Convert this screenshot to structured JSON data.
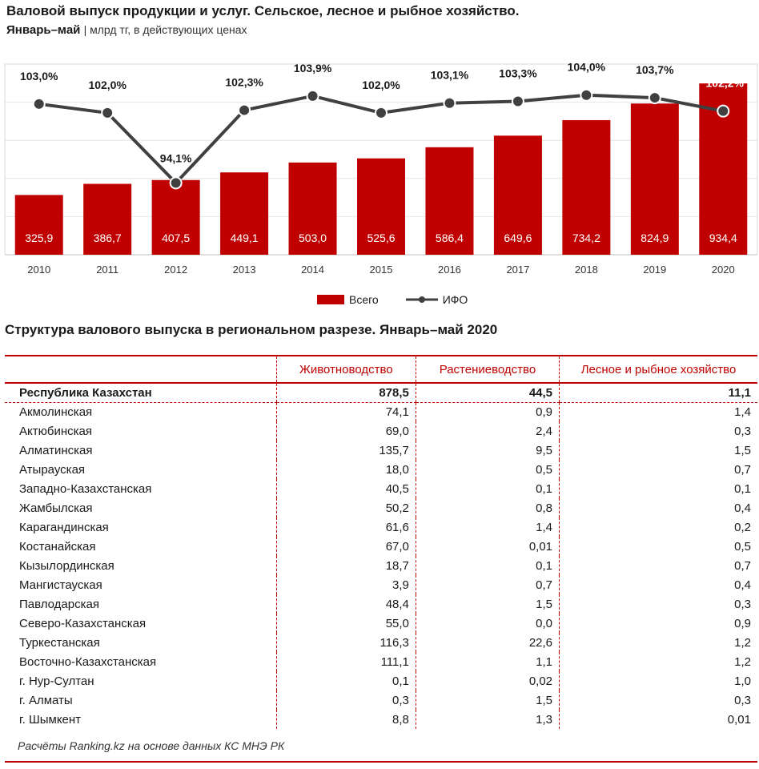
{
  "header": {
    "title": "Валовой выпуск продукции и услуг. Сельское, лесное и рыбное хозяйство.",
    "period": "Январь–май",
    "unit": "| млрд тг, в действующих ценах"
  },
  "chart_data": {
    "type": "bar",
    "categories": [
      "2010",
      "2011",
      "2012",
      "2013",
      "2014",
      "2015",
      "2016",
      "2017",
      "2018",
      "2019",
      "2020"
    ],
    "series": [
      {
        "name": "Всего",
        "type": "bar",
        "color": "#c00000",
        "values": [
          325.9,
          386.7,
          407.5,
          449.1,
          503.0,
          525.6,
          586.4,
          649.6,
          734.2,
          824.9,
          934.4
        ],
        "labels": [
          "325,9",
          "386,7",
          "407,5",
          "449,1",
          "503,0",
          "525,6",
          "586,4",
          "649,6",
          "734,2",
          "824,9",
          "934,4"
        ]
      },
      {
        "name": "ИФО",
        "type": "line",
        "color": "#404040",
        "values": [
          103.0,
          102.0,
          94.1,
          102.3,
          103.9,
          102.0,
          103.1,
          103.3,
          104.0,
          103.7,
          102.2
        ],
        "labels": [
          "103,0%",
          "102,0%",
          "94,1%",
          "102,3%",
          "103,9%",
          "102,0%",
          "103,1%",
          "103,3%",
          "104,0%",
          "103,7%",
          "102,2%"
        ]
      }
    ],
    "ylim_bars": [
      0,
      1000
    ],
    "ylim_line": [
      90,
      106
    ],
    "legend": [
      "Всего",
      "ИФО"
    ],
    "legend_position": "bottom"
  },
  "table": {
    "title": "Структура валового выпуска в региональном разрезе. Январь–май 2020",
    "columns": [
      "",
      "Животноводство",
      "Растениеводство",
      "Лесное и рыбное хозяйство"
    ],
    "rows": [
      [
        "Республика Казахстан",
        "878,5",
        "44,5",
        "11,1"
      ],
      [
        "Акмолинская",
        "74,1",
        "0,9",
        "1,4"
      ],
      [
        "Актюбинская",
        "69,0",
        "2,4",
        "0,3"
      ],
      [
        "Алматинская",
        "135,7",
        "9,5",
        "1,5"
      ],
      [
        "Атырауская",
        "18,0",
        "0,5",
        "0,7"
      ],
      [
        "Западно-Казахстанская",
        "40,5",
        "0,1",
        "0,1"
      ],
      [
        "Жамбылская",
        "50,2",
        "0,8",
        "0,4"
      ],
      [
        "Карагандинская",
        "61,6",
        "1,4",
        "0,2"
      ],
      [
        "Костанайская",
        "67,0",
        "0,01",
        "0,5"
      ],
      [
        "Кызылординская",
        "18,7",
        "0,1",
        "0,7"
      ],
      [
        "Мангистауская",
        "3,9",
        "0,7",
        "0,4"
      ],
      [
        "Павлодарская",
        "48,4",
        "1,5",
        "0,3"
      ],
      [
        "Северо-Казахстанская",
        "55,0",
        "0,0",
        "0,9"
      ],
      [
        "Туркестанская",
        "116,3",
        "22,6",
        "1,2"
      ],
      [
        "Восточно-Казахстанская",
        "111,1",
        "1,1",
        "1,2"
      ],
      [
        "г. Нур-Султан",
        "0,1",
        "0,02",
        "1,0"
      ],
      [
        "г. Алматы",
        "0,3",
        "1,5",
        "0,3"
      ],
      [
        "г. Шымкент",
        "8,8",
        "1,3",
        "0,01"
      ]
    ]
  },
  "source": "Расчёты Ranking.kz на основе данных КС МНЭ РК"
}
